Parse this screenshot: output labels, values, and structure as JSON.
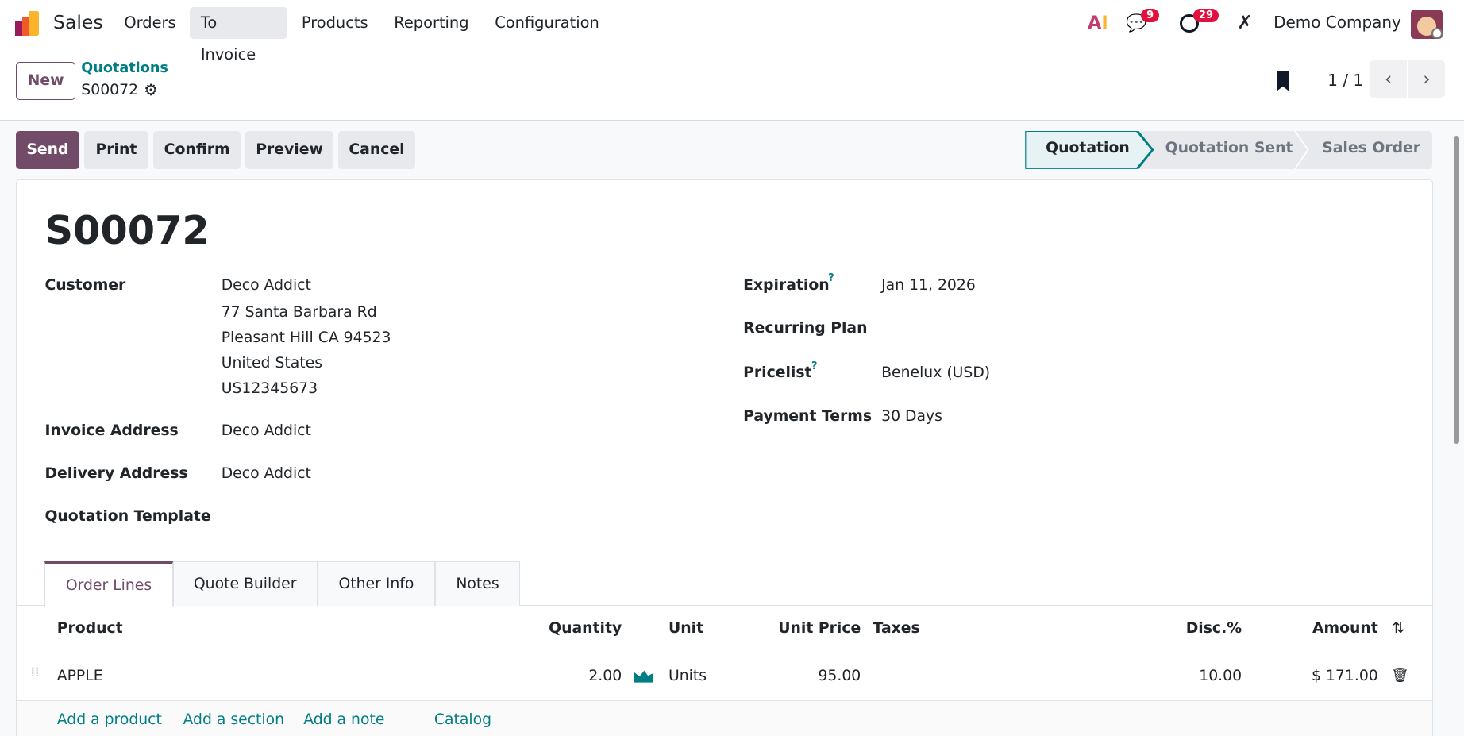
{
  "nav": {
    "app": "Sales",
    "menu": [
      "Orders",
      "To Invoice",
      "Products",
      "Reporting",
      "Configuration"
    ],
    "active_menu": "To Invoice",
    "messages_count": "9",
    "activities_count": "29",
    "company": "Demo Company"
  },
  "control": {
    "new_label": "New",
    "breadcrumb_parent": "Quotations",
    "record": "S00072",
    "pager": "1 / 1"
  },
  "actions": {
    "send": "Send",
    "print": "Print",
    "confirm": "Confirm",
    "preview": "Preview",
    "cancel": "Cancel"
  },
  "status": {
    "stages": [
      "Quotation",
      "Quotation Sent",
      "Sales Order"
    ],
    "current": "Quotation"
  },
  "form": {
    "title": "S00072",
    "customer_label": "Customer",
    "customer": [
      "Deco Addict",
      "77 Santa Barbara Rd",
      "Pleasant Hill CA 94523",
      "United States",
      "US12345673"
    ],
    "invoice_label": "Invoice Address",
    "invoice": "Deco Addict",
    "delivery_label": "Delivery Address",
    "delivery": "Deco Addict",
    "template_label": "Quotation Template",
    "expiration_label": "Expiration",
    "expiration": "Jan 11, 2026",
    "recurring_label": "Recurring Plan",
    "pricelist_label": "Pricelist",
    "pricelist": "Benelux (USD)",
    "terms_label": "Payment Terms",
    "terms": "30 Days",
    "help_mark": "?"
  },
  "tabs": [
    "Order Lines",
    "Quote Builder",
    "Other Info",
    "Notes"
  ],
  "table": {
    "headers": {
      "product": "Product",
      "quantity": "Quantity",
      "unit": "Unit",
      "price": "Unit Price",
      "taxes": "Taxes",
      "disc": "Disc.%",
      "amount": "Amount"
    },
    "rows": [
      {
        "product": "APPLE",
        "quantity": "2.00",
        "unit": "Units",
        "price": "95.00",
        "taxes": "",
        "disc": "10.00",
        "amount": "$ 171.00"
      }
    ],
    "links": [
      "Add a product",
      "Add a section",
      "Add a note",
      "Catalog"
    ]
  },
  "colors": {
    "primary": "#714B67",
    "link": "#017e84",
    "badge": "#e2103f"
  }
}
